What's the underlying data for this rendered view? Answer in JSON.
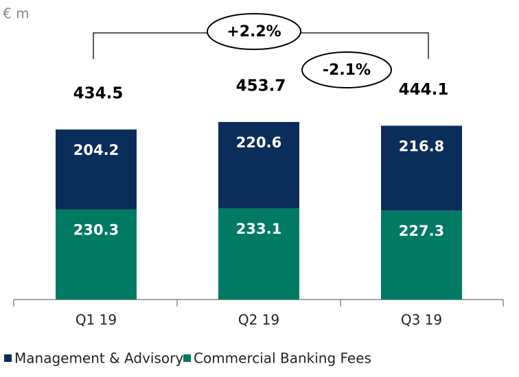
{
  "chart_data": {
    "type": "stacked_bar",
    "unit_label": "€ m",
    "categories": [
      "Q1 19",
      "Q2 19",
      "Q3 19"
    ],
    "series": [
      {
        "name": "Commercial Banking Fees",
        "color": "#007a63",
        "values": [
          230.3,
          233.1,
          227.3
        ]
      },
      {
        "name": "Management & Advisory",
        "color": "#0b2d5a",
        "values": [
          204.2,
          220.6,
          216.8
        ]
      }
    ],
    "totals": [
      434.5,
      453.7,
      444.1
    ],
    "annotations": [
      "+2.2%",
      "-2.1%"
    ]
  }
}
